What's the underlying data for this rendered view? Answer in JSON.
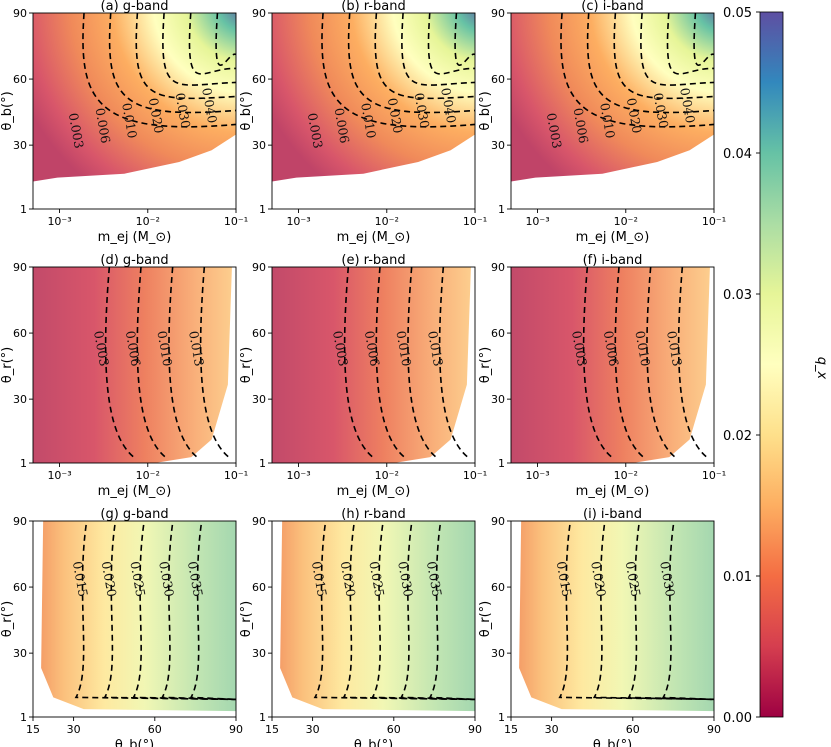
{
  "chart_data": {
    "type": "heatmap",
    "colorbar": {
      "label": "q_x",
      "range": [
        0.0,
        0.05
      ],
      "ticks": [
        "0.00",
        "0.01",
        "0.02",
        "0.03",
        "0.04",
        "0.05"
      ],
      "colormap": [
        "#9e0142",
        "#d53e4f",
        "#f46d43",
        "#fdae61",
        "#fee08b",
        "#ffffbf",
        "#e6f598",
        "#abdda4",
        "#66c2a5",
        "#3288bd",
        "#5e4fa2"
      ]
    },
    "rows": [
      {
        "ylabel": "θ_b(°)",
        "xlabel": "m_ej (M_⊙)",
        "x_scale": "log",
        "xlim": [
          0.0005,
          0.1
        ],
        "ylim": [
          1,
          90
        ],
        "x_ticks": [
          "10⁻³",
          "10⁻²",
          "10⁻¹"
        ],
        "y_ticks": [
          "1",
          "30",
          "60",
          "90"
        ],
        "panels": [
          {
            "title": "(a) g-band",
            "contours": [
              "0.003",
              "0.006",
              "0.010",
              "0.020",
              "0.030",
              "0.040"
            ]
          },
          {
            "title": "(b) r-band",
            "contours": [
              "0.003",
              "0.006",
              "0.010",
              "0.020",
              "0.030",
              "0.040"
            ]
          },
          {
            "title": "(c) i-band",
            "contours": [
              "0.003",
              "0.006",
              "0.010",
              "0.020",
              "0.030",
              "0.040"
            ]
          }
        ]
      },
      {
        "ylabel": "θ_r(°)",
        "xlabel": "m_ej (M_⊙)",
        "x_scale": "log",
        "xlim": [
          0.0005,
          0.1
        ],
        "ylim": [
          1,
          90
        ],
        "x_ticks": [
          "10⁻³",
          "10⁻²",
          "10⁻¹"
        ],
        "y_ticks": [
          "1",
          "30",
          "60",
          "90"
        ],
        "panels": [
          {
            "title": "(d) g-band",
            "contours": [
              "0.003",
              "0.006",
              "0.010",
              "0.013"
            ]
          },
          {
            "title": "(e) r-band",
            "contours": [
              "0.003",
              "0.006",
              "0.010",
              "0.013"
            ]
          },
          {
            "title": "(f) i-band",
            "contours": [
              "0.003",
              "0.006",
              "0.010",
              "0.013"
            ]
          }
        ]
      },
      {
        "ylabel": "θ_r(°)",
        "xlabel": "θ_b(°)",
        "x_scale": "linear",
        "xlim": [
          15,
          90
        ],
        "ylim": [
          1,
          90
        ],
        "x_ticks": [
          "15",
          "30",
          "60",
          "90"
        ],
        "y_ticks": [
          "1",
          "30",
          "60",
          "90"
        ],
        "panels": [
          {
            "title": "(g) g-band",
            "contours": [
              "0.015",
              "0.020",
              "0.025",
              "0.030",
              "0.035"
            ]
          },
          {
            "title": "(h) r-band",
            "contours": [
              "0.015",
              "0.020",
              "0.025",
              "0.030",
              "0.035"
            ]
          },
          {
            "title": "(i) i-band",
            "contours": [
              "0.015",
              "0.020",
              "0.025",
              "0.030"
            ]
          }
        ]
      }
    ]
  }
}
